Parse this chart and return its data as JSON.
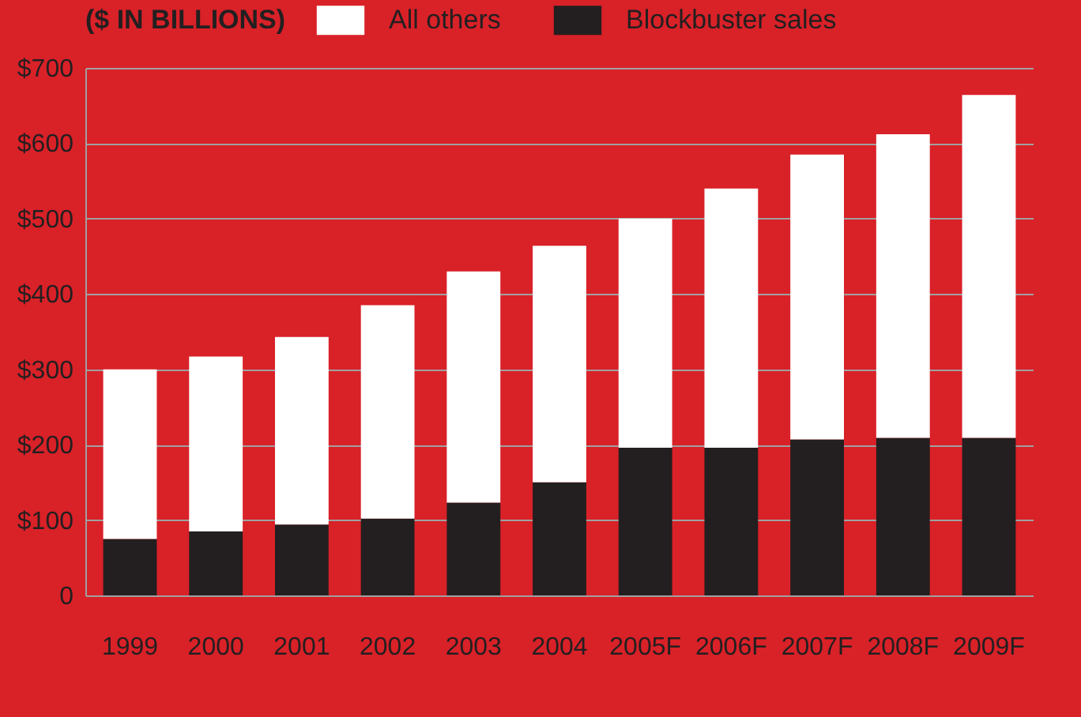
{
  "chart_data": {
    "type": "bar",
    "stacked": true,
    "legend_title": "($ IN BILLIONS)",
    "legend": "top left",
    "categories": [
      "1999",
      "2000",
      "2001",
      "2002",
      "2003",
      "2004",
      "2005F",
      "2006F",
      "2007F",
      "2008F",
      "2009F"
    ],
    "series": [
      {
        "name": "Blockbuster sales",
        "color": "#231f20",
        "values": [
          75,
          85,
          94,
          102,
          123,
          150,
          196,
          196,
          207,
          209,
          209
        ]
      },
      {
        "name": "All others",
        "color": "#ffffff",
        "values": [
          225,
          232,
          249,
          283,
          307,
          314,
          304,
          344,
          378,
          403,
          455
        ]
      }
    ],
    "ylim": [
      0,
      700
    ],
    "yticks": [
      0,
      {
        "value": 100,
        "label": "$100"
      },
      {
        "value": 200,
        "label": "$200"
      },
      {
        "value": 300,
        "label": "$300"
      },
      {
        "value": 400,
        "label": "$400"
      },
      {
        "value": 500,
        "label": "$500"
      },
      {
        "value": 600,
        "label": "$600"
      },
      {
        "value": 700,
        "label": "$700"
      }
    ],
    "grid": "y"
  }
}
